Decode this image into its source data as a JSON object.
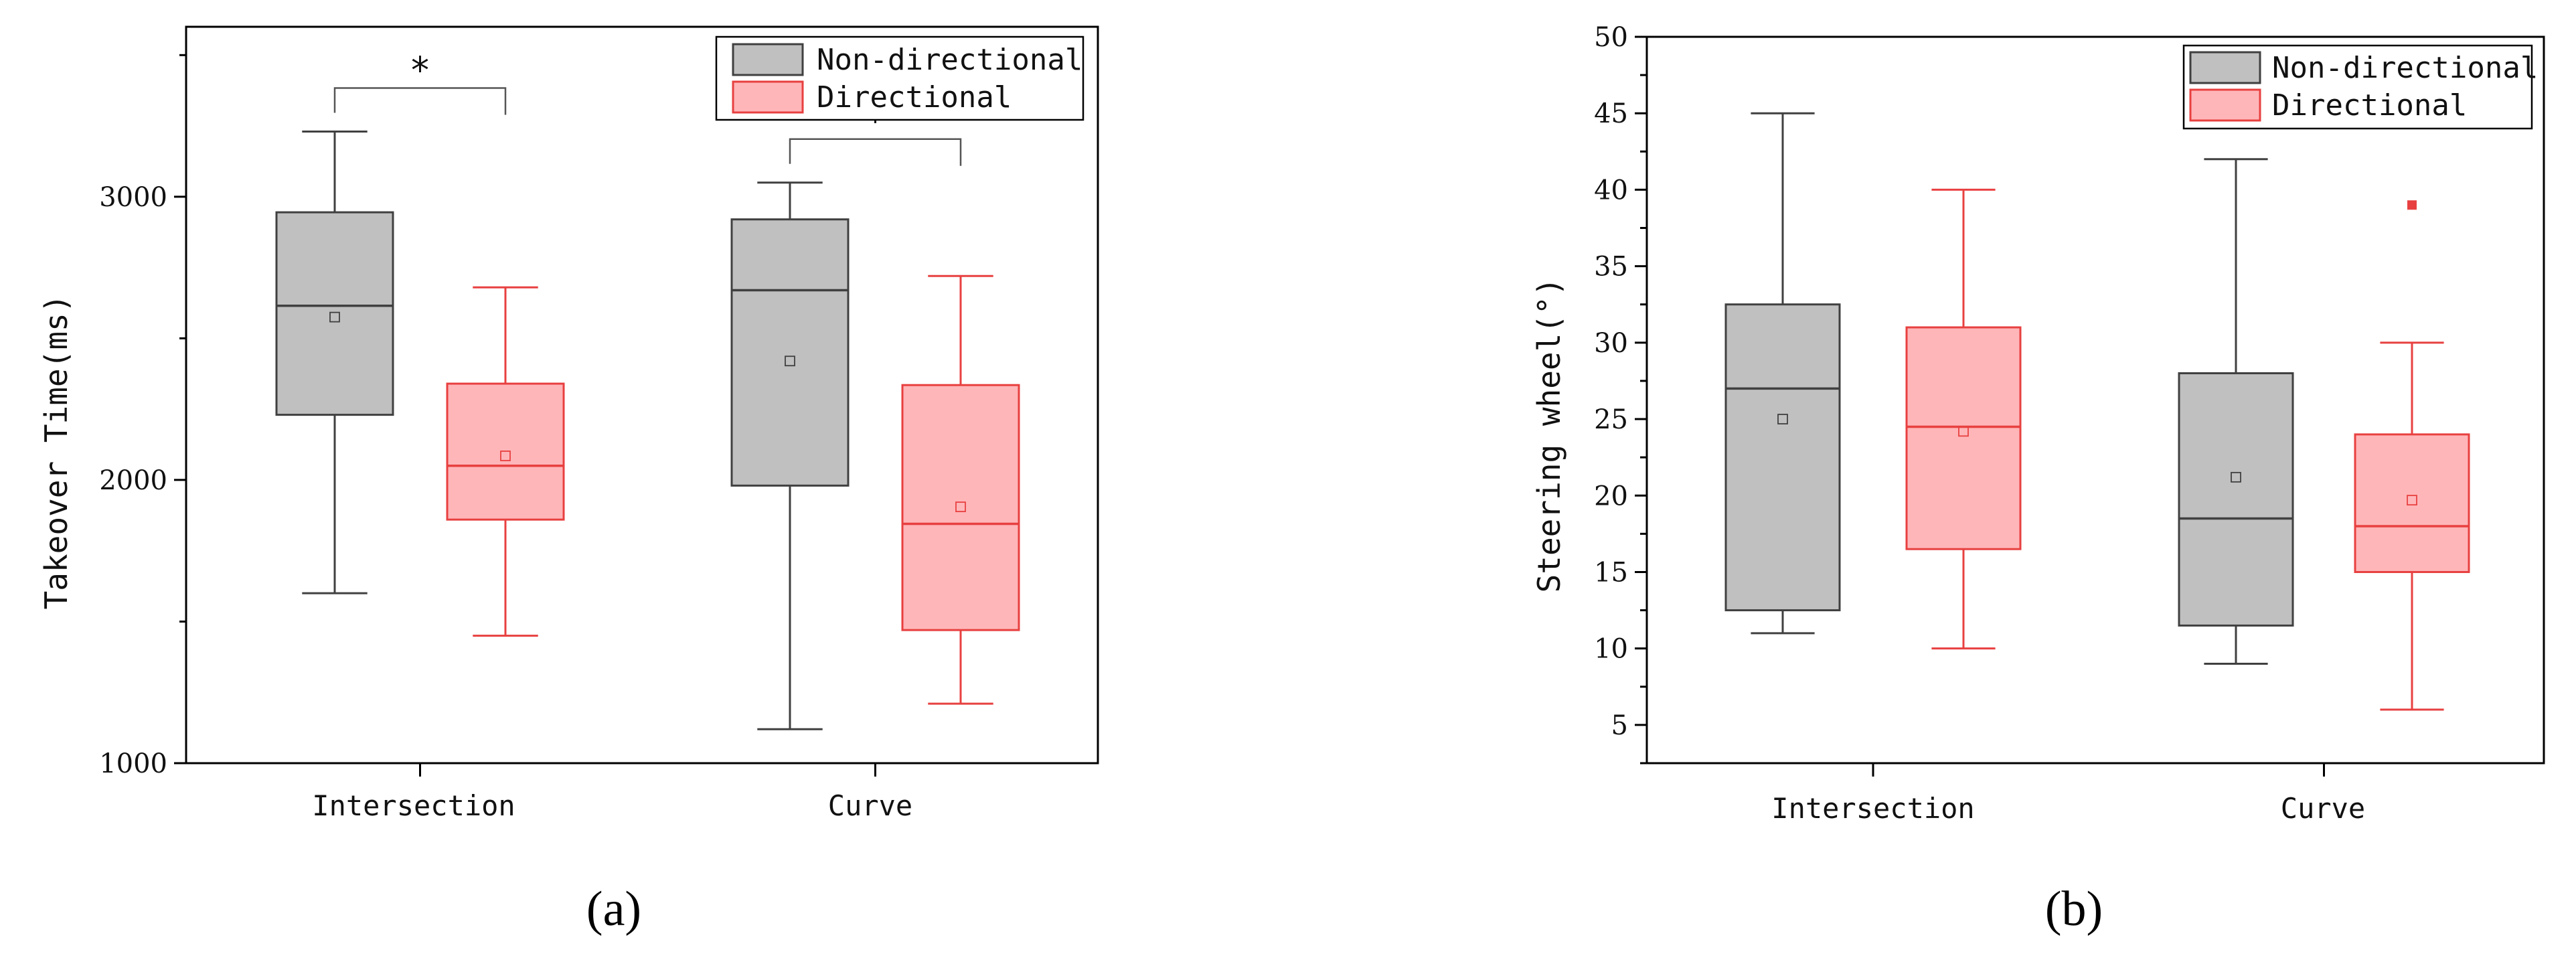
{
  "chart_data": [
    {
      "type": "box",
      "panel_label": "(a)",
      "ylabel": "Takeover Time(ms)",
      "ylim": [
        1000,
        3600
      ],
      "yticks": [
        1000,
        2000,
        3000
      ],
      "categories": [
        "Intersection",
        "Curve"
      ],
      "legend": {
        "position": "top-right",
        "entries": [
          "Non-directional",
          "Directional"
        ]
      },
      "series": [
        {
          "name": "Non-directional",
          "color": "#404040",
          "fill": "#c0c0c0",
          "boxes": [
            {
              "category": "Intersection",
              "min": 1600,
              "q1": 2230,
              "median": 2615,
              "q3": 2945,
              "max": 3230,
              "mean": 2575
            },
            {
              "category": "Curve",
              "min": 1120,
              "q1": 1980,
              "median": 2670,
              "q3": 2920,
              "max": 3050,
              "mean": 2420
            }
          ]
        },
        {
          "name": "Directional",
          "color": "#e84040",
          "fill": "#ffb6b9",
          "boxes": [
            {
              "category": "Intersection",
              "min": 1450,
              "q1": 1860,
              "median": 2050,
              "q3": 2340,
              "max": 2680,
              "mean": 2085
            },
            {
              "category": "Curve",
              "min": 1210,
              "q1": 1470,
              "median": 1845,
              "q3": 2335,
              "max": 2720,
              "mean": 1905
            }
          ]
        }
      ],
      "significance": [
        {
          "category": "Intersection",
          "label": "*"
        },
        {
          "category": "Curve",
          "label": "*"
        }
      ]
    },
    {
      "type": "box",
      "panel_label": "(b)",
      "ylabel": "Steering wheel(°)",
      "ylim": [
        2.5,
        50
      ],
      "yticks": [
        5,
        10,
        15,
        20,
        25,
        30,
        35,
        40,
        45,
        50
      ],
      "categories": [
        "Intersection",
        "Curve"
      ],
      "legend": {
        "position": "top-right",
        "entries": [
          "Non-directional",
          "Directional"
        ]
      },
      "series": [
        {
          "name": "Non-directional",
          "color": "#404040",
          "fill": "#c0c0c0",
          "boxes": [
            {
              "category": "Intersection",
              "min": 11,
              "q1": 12.5,
              "median": 27,
              "q3": 32.5,
              "max": 45,
              "mean": 25
            },
            {
              "category": "Curve",
              "min": 9,
              "q1": 11.5,
              "median": 18.5,
              "q3": 28,
              "max": 42,
              "mean": 21.2
            }
          ]
        },
        {
          "name": "Directional",
          "color": "#e84040",
          "fill": "#ffb6b9",
          "boxes": [
            {
              "category": "Intersection",
              "min": 10,
              "q1": 16.5,
              "median": 24.5,
              "q3": 31,
              "max": 40,
              "mean": 24.2
            },
            {
              "category": "Curve",
              "min": 6,
              "q1": 15,
              "median": 18,
              "q3": 24,
              "max": 30,
              "mean": 19.7,
              "outliers": [
                39
              ]
            }
          ]
        }
      ]
    }
  ]
}
